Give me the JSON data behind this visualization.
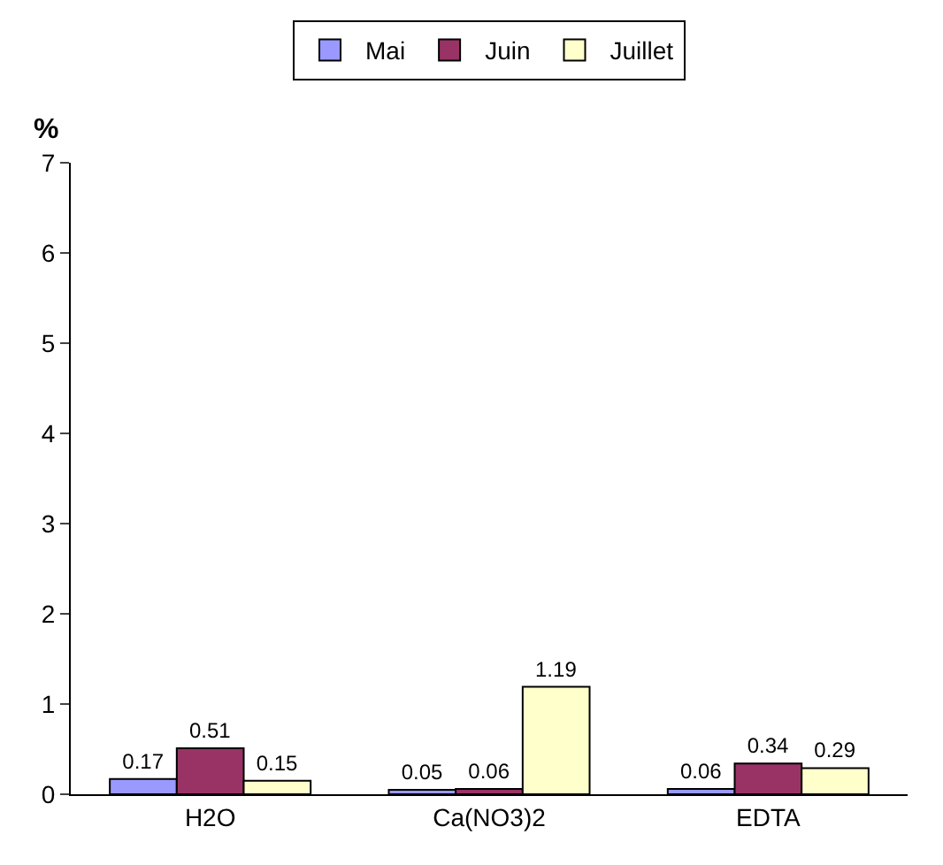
{
  "chart_data": {
    "type": "bar",
    "ylabel": "%",
    "categories": [
      "H2O",
      "Ca(NO3)2",
      "EDTA"
    ],
    "series": [
      {
        "name": "Mai",
        "color": "#9999ff",
        "values": [
          0.17,
          0.05,
          0.06
        ]
      },
      {
        "name": "Juin",
        "color": "#993366",
        "values": [
          0.51,
          0.06,
          0.34
        ]
      },
      {
        "name": "Juillet",
        "color": "#ffffcc",
        "values": [
          0.15,
          1.19,
          0.29
        ]
      }
    ],
    "ylim": [
      0,
      7
    ],
    "yticks": [
      0,
      1,
      2,
      3,
      4,
      5,
      6,
      7
    ],
    "legend": "top",
    "data_labels": true
  }
}
